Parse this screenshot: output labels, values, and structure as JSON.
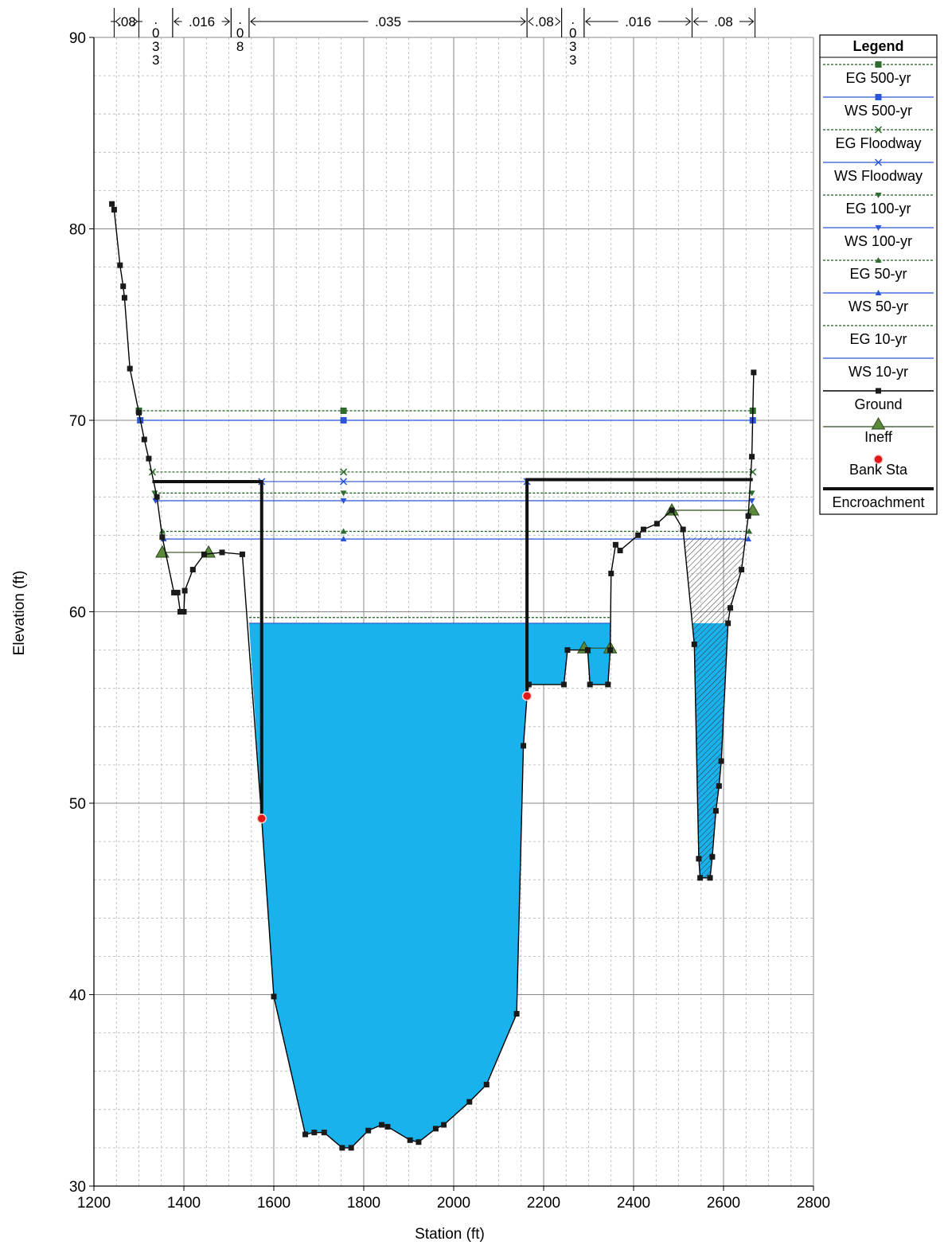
{
  "chart_data": {
    "type": "line",
    "xlabel": "Station (ft)",
    "ylabel": "Elevation (ft)",
    "xlim": [
      1200,
      2800
    ],
    "ylim": [
      30,
      90
    ],
    "x_ticks": [
      1200,
      1400,
      1600,
      1800,
      2000,
      2200,
      2400,
      2600,
      2800
    ],
    "y_ticks": [
      30,
      40,
      50,
      60,
      70,
      80,
      90
    ],
    "grid": true,
    "legend_position": "right",
    "legend_title": "Legend",
    "legend": [
      "EG 500-yr",
      "WS 500-yr",
      "EG Floodway",
      "WS Floodway",
      "EG 100-yr",
      "WS 100-yr",
      "EG 50-yr",
      "WS 50-yr",
      "EG 10-yr",
      "WS 10-yr",
      "Ground",
      "Ineff",
      "Bank Sta",
      "Encroachment"
    ],
    "colors": {
      "water": "#1ab2ec",
      "ws_line": "#2a56d6",
      "eg_line": "#1e5a1e",
      "ground": "#000000",
      "ineff": "#5a8a3a",
      "bank": "#e01818"
    },
    "mannings_n": [
      {
        "label": ".08",
        "from": 1245,
        "to": 1300
      },
      {
        "label": ".033",
        "from": 1300,
        "to": 1375,
        "vertical": true
      },
      {
        "label": ".016",
        "from": 1375,
        "to": 1505
      },
      {
        "label": ".08",
        "from": 1505,
        "to": 1545,
        "vertical": true
      },
      {
        "label": ".035",
        "from": 1545,
        "to": 2163
      },
      {
        "label": ".08",
        "from": 2163,
        "to": 2240
      },
      {
        "label": ".033",
        "from": 2240,
        "to": 2290,
        "vertical": true
      },
      {
        "label": ".016",
        "from": 2290,
        "to": 2530
      },
      {
        "label": ".08",
        "from": 2530,
        "to": 2670
      }
    ],
    "ground": [
      [
        1240,
        81.3
      ],
      [
        1245,
        81.0
      ],
      [
        1258,
        78.1
      ],
      [
        1265,
        77.0
      ],
      [
        1268,
        76.4
      ],
      [
        1280,
        72.7
      ],
      [
        1300,
        70.4
      ],
      [
        1312,
        69.0
      ],
      [
        1322,
        68.0
      ],
      [
        1340,
        66.0
      ],
      [
        1352,
        63.9
      ],
      [
        1378,
        61.0
      ],
      [
        1386,
        61.0
      ],
      [
        1392,
        60.0
      ],
      [
        1400,
        60.0
      ],
      [
        1402,
        61.1
      ],
      [
        1420,
        62.2
      ],
      [
        1445,
        63.0
      ],
      [
        1485,
        63.1
      ],
      [
        1530,
        63.0
      ],
      [
        1573,
        49.2
      ],
      [
        1600,
        39.9
      ],
      [
        1670,
        32.7
      ],
      [
        1690,
        32.8
      ],
      [
        1712,
        32.8
      ],
      [
        1752,
        32.0
      ],
      [
        1772,
        32.0
      ],
      [
        1810,
        32.9
      ],
      [
        1840,
        33.2
      ],
      [
        1853,
        33.1
      ],
      [
        1903,
        32.4
      ],
      [
        1922,
        32.3
      ],
      [
        1960,
        33.0
      ],
      [
        1978,
        33.2
      ],
      [
        2035,
        34.4
      ],
      [
        2073,
        35.3
      ],
      [
        2140,
        39.0
      ],
      [
        2155,
        53.0
      ],
      [
        2163,
        55.6
      ],
      [
        2167,
        56.2
      ],
      [
        2245,
        56.2
      ],
      [
        2253,
        58.0
      ],
      [
        2298,
        58.0
      ],
      [
        2303,
        56.2
      ],
      [
        2343,
        56.2
      ],
      [
        2348,
        58.0
      ],
      [
        2350,
        62.0
      ],
      [
        2360,
        63.5
      ],
      [
        2370,
        63.2
      ],
      [
        2410,
        64.0
      ],
      [
        2422,
        64.3
      ],
      [
        2452,
        64.6
      ],
      [
        2485,
        65.3
      ],
      [
        2510,
        64.3
      ],
      [
        2535,
        58.3
      ],
      [
        2545,
        47.1
      ],
      [
        2548,
        46.1
      ],
      [
        2570,
        46.1
      ],
      [
        2575,
        47.2
      ],
      [
        2583,
        49.6
      ],
      [
        2590,
        50.9
      ],
      [
        2595,
        52.2
      ],
      [
        2610,
        59.4
      ],
      [
        2615,
        60.2
      ],
      [
        2640,
        62.2
      ],
      [
        2655,
        65.0
      ],
      [
        2663,
        68.1
      ],
      [
        2667,
        72.5
      ]
    ],
    "water_surfaces": [
      {
        "name": "WS 500-yr",
        "y": 70.0,
        "x0": 1303,
        "x1": 2665
      },
      {
        "name": "EG 500-yr",
        "y": 70.5,
        "x0": 1300,
        "x1": 2665
      },
      {
        "name": "WS Floodway",
        "y": 66.8,
        "x0": 1573,
        "x1": 2163
      },
      {
        "name": "EG Floodway",
        "y": 67.3,
        "x0": 1330,
        "x1": 2665
      },
      {
        "name": "WS 100-yr",
        "y": 65.8,
        "x0": 1337,
        "x1": 2663
      },
      {
        "name": "EG 100-yr",
        "y": 66.2,
        "x0": 1335,
        "x1": 2663
      },
      {
        "name": "WS 50-yr",
        "y": 63.8,
        "x0": 1355,
        "x1": 2655
      },
      {
        "name": "EG 50-yr",
        "y": 64.2,
        "x0": 1352,
        "x1": 2657
      },
      {
        "name": "WS 10-yr",
        "y": 59.4,
        "x0": 1545,
        "x1": 2348
      },
      {
        "name": "EG 10-yr",
        "y": 59.7,
        "x0": 1545,
        "x1": 2348
      }
    ],
    "encroachment": [
      {
        "x": [
          1330,
          1573,
          1573
        ],
        "y": [
          66.8,
          66.8,
          49.2
        ]
      },
      {
        "x": [
          2163,
          2163,
          2665
        ],
        "y": [
          55.6,
          66.9,
          66.9
        ]
      }
    ],
    "ineff": [
      {
        "x": [
          1352,
          1455
        ],
        "y": [
          63.1,
          63.1
        ]
      },
      {
        "x": [
          2290,
          2348
        ],
        "y": [
          58.1,
          58.1
        ]
      },
      {
        "x": [
          2485,
          2665
        ],
        "y": [
          65.3,
          65.3
        ]
      }
    ],
    "bank_stations": [
      [
        1573,
        49.2
      ],
      [
        2163,
        55.6
      ]
    ]
  }
}
